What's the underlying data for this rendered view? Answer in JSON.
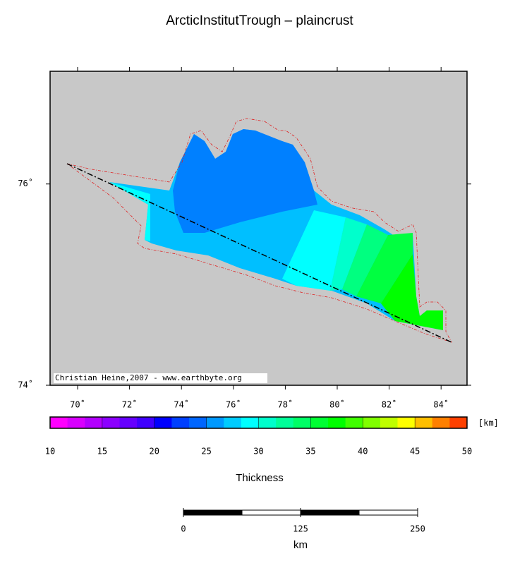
{
  "title": "ArcticInstitutTrough – plaincrust",
  "credit": "Christian Heine,2007 - www.earthbyte.org",
  "map": {
    "lonlim": [
      68.94,
      85
    ],
    "latlim": [
      74,
      77.12
    ],
    "lon_ticks": [
      {
        "value": 70,
        "label": "70˚"
      },
      {
        "value": 72,
        "label": "72˚"
      },
      {
        "value": 74,
        "label": "74˚"
      },
      {
        "value": 76,
        "label": "76˚"
      },
      {
        "value": 78,
        "label": "78˚"
      },
      {
        "value": 80,
        "label": "80˚"
      },
      {
        "value": 82,
        "label": "82˚"
      },
      {
        "value": 84,
        "label": "84˚"
      }
    ],
    "lat_ticks": [
      {
        "value": 74,
        "label": "74˚"
      },
      {
        "value": 76,
        "label": "76˚"
      }
    ]
  },
  "colorbar": {
    "range": [
      10,
      50
    ],
    "ticks": [
      10,
      15,
      20,
      25,
      30,
      35,
      40,
      45,
      50
    ],
    "unit": "[km]",
    "label": "Thickness",
    "colors": [
      "#ff00ff",
      "#d900ff",
      "#b300ff",
      "#8c00ff",
      "#6600ff",
      "#4000ff",
      "#0000ff",
      "#0040ff",
      "#0066ff",
      "#0099ff",
      "#00ccff",
      "#00ffff",
      "#00ffcc",
      "#00ff99",
      "#00ff66",
      "#00ff33",
      "#00ff00",
      "#40ff00",
      "#80ff00",
      "#bfff00",
      "#ffff00",
      "#ffbf00",
      "#ff8000",
      "#ff4000"
    ]
  },
  "scale_bar": {
    "range": [
      0,
      250
    ],
    "ticks": [
      0,
      125,
      250
    ],
    "unit": "km"
  }
}
